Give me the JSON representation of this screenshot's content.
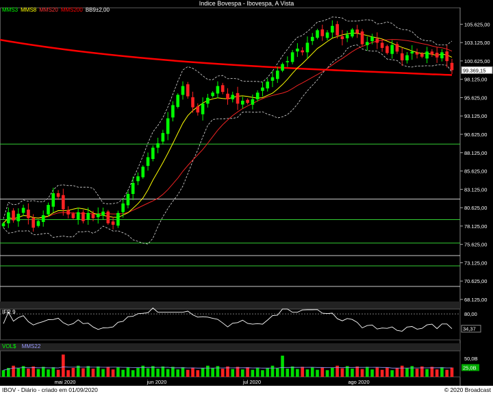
{
  "window": {
    "title": "Indice Bovespa - Ibovespa, A Vista"
  },
  "legend": [
    {
      "label": "MMS3",
      "color": "#00ff00"
    },
    {
      "label": "MMS8",
      "color": "#ffff00"
    },
    {
      "label": "MMS20",
      "color": "#ff3333"
    },
    {
      "label": "MMS200",
      "color": "#ff0000"
    },
    {
      "label": "BB9±2,00",
      "color": "#ffffff"
    }
  ],
  "panels": {
    "ifr": {
      "label": "IFR 9",
      "ticks": [
        "80,00"
      ],
      "last_value": "34,37"
    },
    "vol": {
      "label": "VOL$",
      "ma_label": "MMS22",
      "ticks": [
        "50,0B"
      ],
      "last_value": "25,0B"
    }
  },
  "footer": {
    "left": "IBOV - Diário - criado em 01/09/2020",
    "right": "© 2020 Broadcast"
  },
  "chart_data": {
    "type": "candlestick",
    "title": "Indice Bovespa - Ibovespa, A Vista",
    "x_ticks": [
      "mai 2020",
      "jun 2020",
      "jul 2020",
      "ago 2020"
    ],
    "y_ticks": [
      "105.625,00",
      "103.125,00",
      "100.625,00",
      "98.125,00",
      "95.625,00",
      "93.125,00",
      "90.625,00",
      "88.125,00",
      "85.625,00",
      "83.125,00",
      "80.625,00",
      "78.125,00",
      "75.625,00",
      "73.125,00",
      "70.625,00",
      "68.125,00"
    ],
    "ylim": [
      67000,
      107900
    ],
    "last_price_label": "99.369,15",
    "mms200": {
      "start": 103500,
      "end": 98700
    },
    "horizontal_levels": [
      {
        "value": 89300,
        "color": "#33cc33"
      },
      {
        "value": 81800,
        "color": "#cccccc"
      },
      {
        "value": 79000,
        "color": "#33cc33"
      },
      {
        "value": 75800,
        "color": "#33cc33"
      },
      {
        "value": 74100,
        "color": "#cccccc"
      },
      {
        "value": 72700,
        "color": "#33cc33"
      },
      {
        "value": 69900,
        "color": "#cccccc"
      }
    ],
    "closes": [
      78500,
      80000,
      78900,
      79800,
      80600,
      79200,
      77900,
      78800,
      79600,
      81000,
      82600,
      82100,
      80400,
      79700,
      79200,
      80000,
      78800,
      79900,
      79200,
      79800,
      80100,
      78500,
      78300,
      79900,
      81200,
      82500,
      84000,
      84900,
      86200,
      87500,
      88800,
      89400,
      90800,
      92800,
      94600,
      96000,
      97200,
      95800,
      94300,
      93600,
      94800,
      95600,
      96300,
      97200,
      96400,
      95400,
      96000,
      94800,
      95200,
      94900,
      95400,
      96300,
      97000,
      97800,
      98400,
      99300,
      100200,
      100600,
      101800,
      102300,
      101800,
      103100,
      103900,
      104800,
      104000,
      104500,
      105400,
      104100,
      103600,
      104200,
      104900,
      104400,
      102900,
      103200,
      103900,
      103100,
      102400,
      101700,
      102800,
      101900,
      100700,
      101400,
      101900,
      101500,
      101200,
      101900,
      101500,
      101100,
      101800,
      100600,
      99369
    ],
    "volume_bars": 91,
    "volume_ma_label": "MMS22",
    "ifr_last": 34.37
  }
}
